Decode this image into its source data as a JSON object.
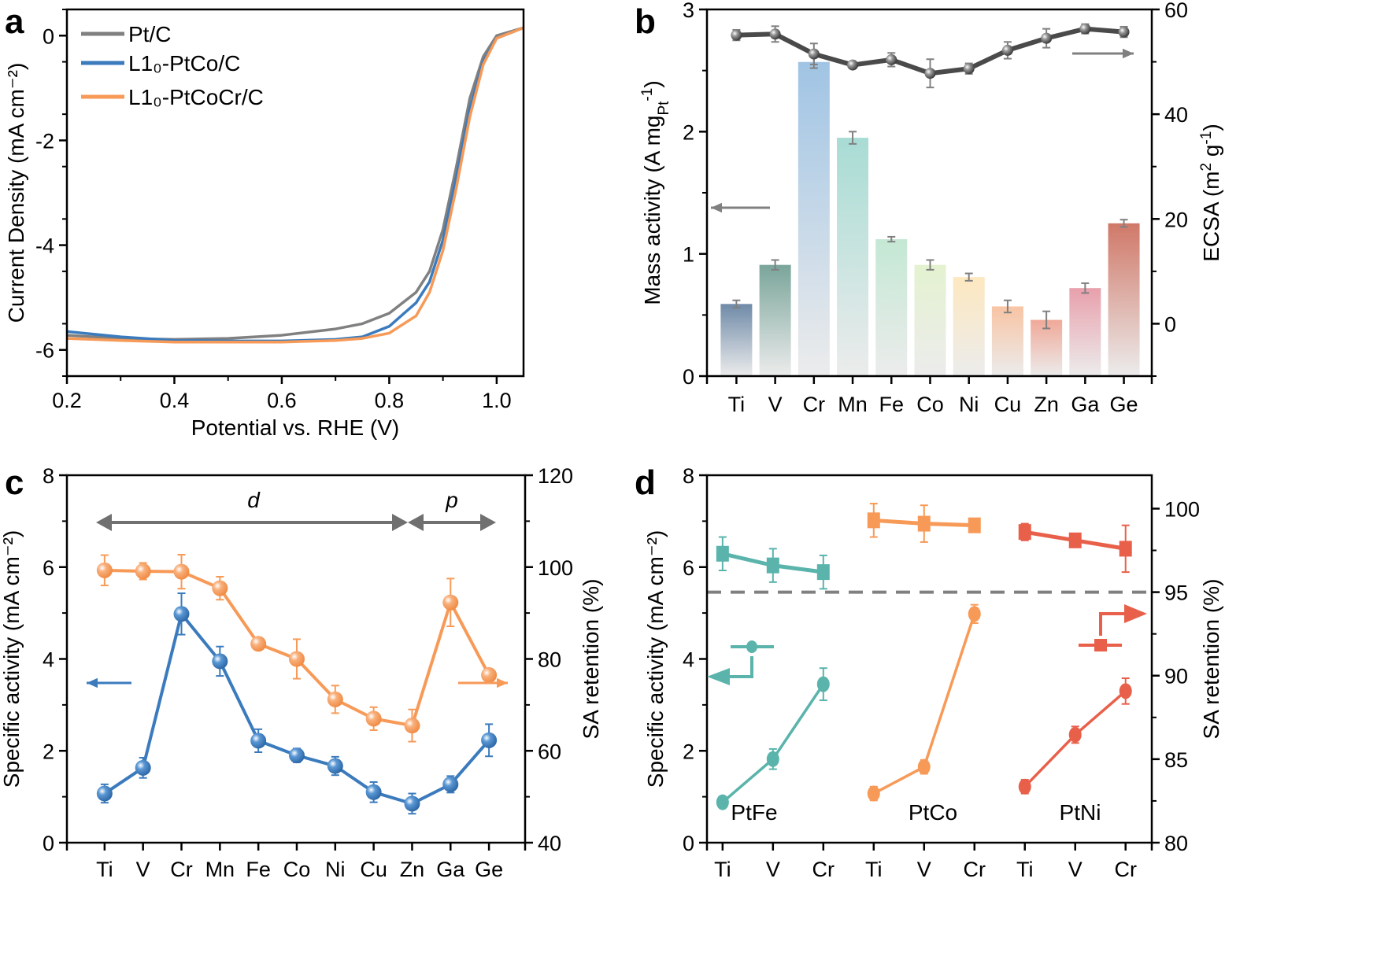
{
  "colors": {
    "gray": "#808080",
    "blue": "#3b7bbd",
    "orange": "#f79a58",
    "teal": "#5ab4ac",
    "red": "#e8604a",
    "dark": "#4a4a4a"
  },
  "chart_data": [
    {
      "panel_label": "a",
      "type": "line",
      "xlabel": "Potential vs. RHE (V)",
      "ylabel": "Current Density (mA cm⁻²)",
      "xlim": [
        0.2,
        1.05
      ],
      "ylim": [
        -6.5,
        0.5
      ],
      "xticks": [
        "0.2",
        "0.4",
        "0.6",
        "0.8",
        "1.0"
      ],
      "xtick_values": [
        0.2,
        0.4,
        0.6,
        0.8,
        1.0
      ],
      "yticks": [
        "0",
        "-2",
        "-4",
        "-6"
      ],
      "ytick_values": [
        0,
        -2,
        -4,
        -6
      ],
      "legend_position": "top-left",
      "x": [
        0.2,
        0.3,
        0.4,
        0.5,
        0.6,
        0.7,
        0.75,
        0.8,
        0.85,
        0.875,
        0.9,
        0.925,
        0.95,
        0.975,
        1.0,
        1.05
      ],
      "series": [
        {
          "name": "Pt/C",
          "color": "#808080",
          "values": [
            -5.72,
            -5.78,
            -5.8,
            -5.78,
            -5.72,
            -5.6,
            -5.5,
            -5.3,
            -4.9,
            -4.5,
            -3.7,
            -2.5,
            -1.2,
            -0.4,
            0.0,
            0.15
          ]
        },
        {
          "name": "L1₀-PtCo/C",
          "color": "#3b7bbd",
          "values": [
            -5.65,
            -5.75,
            -5.82,
            -5.83,
            -5.83,
            -5.8,
            -5.75,
            -5.55,
            -5.1,
            -4.7,
            -3.9,
            -2.7,
            -1.4,
            -0.5,
            -0.05,
            0.15
          ]
        },
        {
          "name": "L1₀-PtCoCr/C",
          "color": "#f79a58",
          "values": [
            -5.78,
            -5.82,
            -5.85,
            -5.85,
            -5.85,
            -5.82,
            -5.78,
            -5.68,
            -5.35,
            -4.9,
            -4.1,
            -2.9,
            -1.55,
            -0.55,
            -0.05,
            0.15
          ]
        }
      ]
    },
    {
      "panel_label": "b",
      "type": "bar",
      "ylabel": {
        "pre": "Mass activity (A mg",
        "sub": "Pt",
        "sup": "-1",
        "post": ")"
      },
      "ylabel_right": {
        "pre": "ECSA (m",
        "sup": "2",
        "mid": " g",
        "sup2": "-1",
        "post": ")"
      },
      "categories": [
        "Ti",
        "V",
        "Cr",
        "Mn",
        "Fe",
        "Co",
        "Ni",
        "Cu",
        "Zn",
        "Ga",
        "Ge"
      ],
      "ylim": [
        0,
        3
      ],
      "ylim_right": [
        -10,
        60
      ],
      "yticks": [
        "0",
        "1",
        "2",
        "3"
      ],
      "ytick_values": [
        0,
        1,
        2,
        3
      ],
      "yticks_right": [
        "0",
        "20",
        "40",
        "60"
      ],
      "ytick_values_right": [
        0,
        20,
        40,
        60
      ],
      "bars": {
        "axis": "left",
        "values": [
          0.59,
          0.91,
          2.57,
          1.95,
          1.12,
          0.91,
          0.81,
          0.57,
          0.46,
          0.72,
          1.25
        ],
        "errors": [
          0.03,
          0.04,
          0.05,
          0.05,
          0.02,
          0.04,
          0.03,
          0.05,
          0.07,
          0.04,
          0.03
        ],
        "colors": [
          "#6f8aa8",
          "#7aa59a",
          "#a0c4e4",
          "#a8dcd4",
          "#c4e8d4",
          "#e4f2d0",
          "#fde8c0",
          "#f8c4a4",
          "#f0a898",
          "#e8a0ac",
          "#d07868"
        ]
      },
      "line": {
        "axis": "right",
        "color": "#4a4a4a",
        "values": [
          55.1,
          55.3,
          51.5,
          49.4,
          50.4,
          47.8,
          48.7,
          52.2,
          54.5,
          56.3,
          55.7
        ],
        "errors": [
          1.0,
          1.5,
          2.0,
          0.6,
          1.3,
          2.7,
          1.0,
          1.6,
          1.8,
          0.9,
          1.0
        ]
      }
    },
    {
      "panel_label": "c",
      "type": "line",
      "ylabel": "Specific activity (mA cm⁻²)",
      "ylabel_right": "SA retention (%)",
      "categories": [
        "Ti",
        "V",
        "Cr",
        "Mn",
        "Fe",
        "Co",
        "Ni",
        "Cu",
        "Zn",
        "Ga",
        "Ge"
      ],
      "ylim": [
        0,
        8
      ],
      "ylim_right": [
        40,
        120
      ],
      "yticks": [
        "0",
        "2",
        "4",
        "6",
        "8"
      ],
      "ytick_values": [
        0,
        2,
        4,
        6,
        8
      ],
      "yticks_right": [
        "40",
        "60",
        "80",
        "100",
        "120"
      ],
      "ytick_values_right": [
        40,
        60,
        80,
        100,
        120
      ],
      "annotations": {
        "d_block": "d",
        "p_block": "p"
      },
      "series": [
        {
          "axis": "left",
          "color": "#3b7bbd",
          "values": [
            1.07,
            1.63,
            4.98,
            3.95,
            2.22,
            1.9,
            1.67,
            1.1,
            0.85,
            1.27,
            2.23
          ],
          "errors": [
            0.2,
            0.22,
            0.45,
            0.32,
            0.25,
            0.15,
            0.2,
            0.22,
            0.22,
            0.18,
            0.35
          ]
        },
        {
          "axis": "right",
          "color": "#f79a58",
          "values": [
            99.3,
            99.1,
            99.0,
            95.4,
            83.3,
            80.0,
            71.2,
            67.0,
            65.5,
            92.3,
            76.5
          ],
          "errors": [
            3.3,
            1.8,
            3.7,
            2.5,
            1.0,
            4.3,
            3.0,
            2.5,
            3.5,
            5.2,
            1.2
          ]
        }
      ]
    },
    {
      "panel_label": "d",
      "type": "line",
      "ylabel": "Specific activity (mA cm⁻²)",
      "ylabel_right": "SA retention (%)",
      "categories": [
        "Ti",
        "V",
        "Cr",
        "Ti",
        "V",
        "Cr",
        "Ti",
        "V",
        "Cr"
      ],
      "ylim": [
        0,
        8
      ],
      "ylim_right": [
        80,
        102
      ],
      "yticks": [
        "0",
        "2",
        "4",
        "6",
        "8"
      ],
      "ytick_values": [
        0,
        2,
        4,
        6,
        8
      ],
      "yticks_right": [
        "80",
        "85",
        "90",
        "95",
        "100"
      ],
      "ytick_values_right": [
        80,
        85,
        90,
        95,
        100
      ],
      "reference_line": {
        "axis": "right",
        "value": 95
      },
      "groups": [
        {
          "name": "PtFe",
          "color": "#5ab4ac",
          "sa": [
            0.88,
            1.82,
            3.45
          ],
          "sa_err": [
            0.05,
            0.22,
            0.35
          ],
          "retention": [
            97.3,
            96.6,
            96.2
          ],
          "retention_err": [
            1.0,
            1.0,
            1.0
          ]
        },
        {
          "name": "PtCo",
          "color": "#f79a58",
          "sa": [
            1.07,
            1.65,
            4.98
          ],
          "sa_err": [
            0.15,
            0.15,
            0.2
          ],
          "retention": [
            99.3,
            99.1,
            99.0
          ],
          "retention_err": [
            1.0,
            1.1,
            0.4
          ]
        },
        {
          "name": "PtNi",
          "color": "#e8604a",
          "sa": [
            1.22,
            2.35,
            3.3
          ],
          "sa_err": [
            0.15,
            0.18,
            0.28
          ],
          "retention": [
            98.6,
            98.1,
            97.6
          ],
          "retention_err": [
            0.5,
            0.4,
            1.4
          ]
        }
      ]
    }
  ]
}
